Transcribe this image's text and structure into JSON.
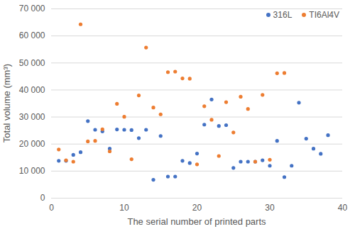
{
  "chart_data": {
    "type": "scatter",
    "x_label": "The serial number of printed parts",
    "y_label": "Total volume (mm³)",
    "xlim": [
      0,
      40
    ],
    "xticks": [
      0,
      10,
      20,
      30,
      40
    ],
    "ylim": [
      0,
      70000
    ],
    "yticks": [
      {
        "value": 0,
        "label": "0"
      },
      {
        "value": 10000,
        "label": "10 000"
      },
      {
        "value": 20000,
        "label": "20 000"
      },
      {
        "value": 30000,
        "label": "30 000"
      },
      {
        "value": 40000,
        "label": "40 000"
      },
      {
        "value": 50000,
        "label": "50 000"
      },
      {
        "value": 60000,
        "label": "60 000"
      },
      {
        "value": 70000,
        "label": "70 000"
      }
    ],
    "grid": true,
    "legend": "top-right",
    "series": [
      {
        "name": "316L",
        "color": "#4472c4",
        "marker": "circle",
        "x": [
          1,
          2,
          3,
          4,
          5,
          6,
          7,
          8,
          9,
          10,
          11,
          12,
          13,
          14,
          15,
          16,
          17,
          18,
          19,
          20,
          21,
          22,
          23,
          24,
          25,
          26,
          27,
          28,
          29,
          30,
          31,
          32,
          33,
          34,
          35,
          36,
          37,
          38
        ],
        "values": [
          13800,
          13800,
          16000,
          17000,
          28500,
          25300,
          24700,
          18300,
          25400,
          25300,
          25200,
          22200,
          25300,
          6800,
          23000,
          8000,
          8000,
          13800,
          13000,
          16500,
          27200,
          36500,
          26700,
          27000,
          11200,
          13500,
          13500,
          13500,
          14000,
          12000,
          21200,
          7800,
          12000,
          35300,
          22000,
          18300,
          16400,
          23300
        ]
      },
      {
        "name": "TI6Al4V",
        "color": "#ed7d31",
        "marker": "circle",
        "x": [
          1,
          2,
          3,
          4,
          5,
          6,
          7,
          8,
          9,
          10,
          11,
          12,
          13,
          14,
          15,
          16,
          17,
          18,
          19,
          20,
          21,
          22,
          23,
          24,
          25,
          26,
          27,
          28,
          29,
          30,
          31,
          32
        ],
        "values": [
          18000,
          14000,
          13500,
          64300,
          21000,
          21200,
          25500,
          17300,
          34900,
          30100,
          14400,
          38000,
          55700,
          33500,
          31000,
          46600,
          46800,
          44300,
          44200,
          12500,
          34000,
          29000,
          15600,
          35500,
          24300,
          37500,
          33000,
          13500,
          38200,
          14200,
          46200,
          46300
        ]
      }
    ]
  }
}
